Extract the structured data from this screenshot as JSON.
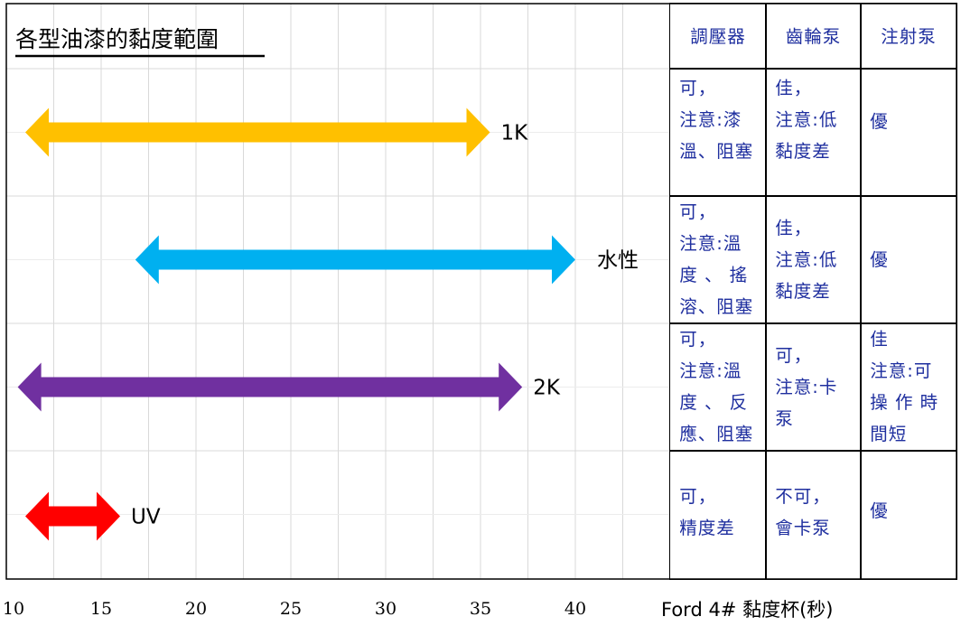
{
  "chart_data": {
    "type": "range-arrow",
    "title": "各型油漆的黏度範圍",
    "xlabel": "Ford 4#  黏度杯(秒)",
    "xlim": [
      10,
      45
    ],
    "x_ticks": [
      10,
      15,
      20,
      25,
      30,
      35,
      40
    ],
    "grid": true,
    "series": [
      {
        "name": "1K",
        "start": 11.0,
        "end": 35.5,
        "color": "#FFC000"
      },
      {
        "name": "水性",
        "start": 16.8,
        "end": 40.0,
        "color": "#00B0F0"
      },
      {
        "name": "2K",
        "start": 10.6,
        "end": 37.2,
        "color": "#7030A0"
      },
      {
        "name": "UV",
        "start": 11.0,
        "end": 16.0,
        "color": "#FF0000"
      }
    ]
  },
  "table": {
    "headers": [
      "調壓器",
      "齒輪泵",
      "注射泵"
    ],
    "rows": [
      {
        "name": "1K",
        "cells": [
          [
            "可，",
            "注意:漆",
            "溫、阻塞"
          ],
          [
            "佳，",
            "注意:低",
            "黏度差"
          ],
          [
            "優"
          ]
        ]
      },
      {
        "name": "水性",
        "cells": [
          [
            "可，",
            "注意:溫",
            "度 、 搖",
            "溶、阻塞"
          ],
          [
            "佳，",
            "注意:低",
            "黏度差"
          ],
          [
            "優"
          ]
        ]
      },
      {
        "name": "2K",
        "cells": [
          [
            "可，",
            "注意:溫",
            "度 、 反",
            "應、阻塞"
          ],
          [
            "可，",
            "注意:卡",
            "泵"
          ],
          [
            "佳",
            "注意:可",
            "操 作 時",
            "間短"
          ]
        ]
      },
      {
        "name": "UV",
        "cells": [
          [
            "可，",
            "精度差"
          ],
          [
            "不可，",
            "會卡泵"
          ],
          [
            "優"
          ]
        ]
      }
    ]
  }
}
